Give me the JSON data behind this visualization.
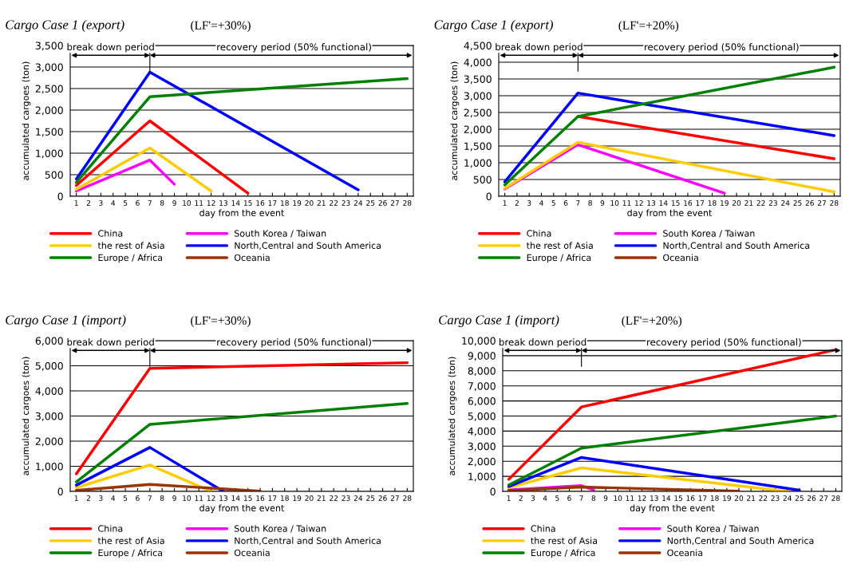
{
  "chart_data": [
    {
      "type": "line",
      "title": "Cargo Case 1 (export)",
      "subtitle": "(LF'=+30%)",
      "xlabel": "day from the event",
      "ylabel": "accumulated cargoes (ton)",
      "xlim": [
        0.5,
        28.5
      ],
      "xticks": [
        1,
        2,
        3,
        4,
        5,
        6,
        7,
        8,
        9,
        10,
        11,
        12,
        13,
        14,
        15,
        16,
        17,
        18,
        19,
        20,
        21,
        22,
        23,
        24,
        25,
        26,
        27,
        28
      ],
      "ylim": [
        0,
        3500
      ],
      "yticks": [
        0,
        {
          "value": 500,
          "label": "500"
        },
        {
          "value": 1000,
          "label": "1,000"
        },
        {
          "value": 1500,
          "label": "1,500"
        },
        {
          "value": 2000,
          "label": "2,000"
        },
        {
          "value": 2500,
          "label": "2,500"
        },
        {
          "value": 3000,
          "label": "3,000"
        },
        {
          "value": 3500,
          "label": "3,500"
        }
      ],
      "grid": "y",
      "legend": "bottom",
      "marker": "none",
      "line_style": "solid",
      "ref_lines": [
        {
          "axis": "x",
          "value": 7
        }
      ],
      "annotations": [
        "break down period",
        "recovery period (50% functional)"
      ],
      "series": [
        {
          "name": "China",
          "color": "#ff0000",
          "x": [
            1,
            7,
            15
          ],
          "values": [
            250,
            1750,
            70
          ]
        },
        {
          "name": "South Korea / Taiwan",
          "color": "#ff00ff",
          "x": [
            1,
            7,
            9
          ],
          "values": [
            120,
            840,
            280
          ]
        },
        {
          "name": "the rest of Asia",
          "color": "#ffcc00",
          "x": [
            1,
            7,
            12
          ],
          "values": [
            160,
            1120,
            120
          ]
        },
        {
          "name": "North,Central and South America",
          "color": "#0000ff",
          "x": [
            1,
            7,
            24
          ],
          "values": [
            400,
            2880,
            150
          ]
        },
        {
          "name": "Europe / Africa",
          "color": "#008000",
          "x": [
            1,
            7,
            28
          ],
          "values": [
            320,
            2310,
            2730
          ]
        },
        {
          "name": "Oceania",
          "color": "#993300"
        }
      ]
    },
    {
      "type": "line",
      "title": "Cargo Case 1 (export)",
      "subtitle": "(LF'=+20%)",
      "xlabel": "day from the event",
      "ylabel": "accumulated cargoes (ton)",
      "xlim": [
        0.5,
        28.5
      ],
      "xticks": [
        1,
        2,
        3,
        4,
        5,
        6,
        7,
        8,
        9,
        10,
        11,
        12,
        13,
        14,
        15,
        16,
        17,
        18,
        19,
        20,
        21,
        22,
        23,
        24,
        25,
        26,
        27,
        28
      ],
      "ylim": [
        0,
        4500
      ],
      "yticks": [
        0,
        {
          "value": 500,
          "label": "500"
        },
        {
          "value": 1000,
          "label": "1,000"
        },
        {
          "value": 1500,
          "label": "1,500"
        },
        {
          "value": 2000,
          "label": "2,000"
        },
        {
          "value": 2500,
          "label": "2,500"
        },
        {
          "value": 3000,
          "label": "3,000"
        },
        {
          "value": 3500,
          "label": "3,500"
        },
        {
          "value": 4000,
          "label": "4,000"
        },
        {
          "value": 4500,
          "label": "4,500"
        }
      ],
      "grid": "y",
      "legend": "bottom",
      "marker": "none",
      "line_style": "solid",
      "ref_lines": [
        {
          "axis": "x",
          "value": 7
        }
      ],
      "annotations": [
        "break down period",
        "recovery period (50% functional)"
      ],
      "series": [
        {
          "name": "China",
          "color": "#ff0000",
          "x": [
            7,
            28
          ],
          "values": [
            2380,
            1120
          ]
        },
        {
          "name": "South Korea / Taiwan",
          "color": "#ff00ff",
          "x": [
            1,
            7,
            19
          ],
          "values": [
            220,
            1540,
            90
          ]
        },
        {
          "name": "the rest of Asia",
          "color": "#ffcc00",
          "x": [
            1,
            7,
            28
          ],
          "values": [
            240,
            1610,
            130
          ]
        },
        {
          "name": "North,Central and South America",
          "color": "#0000ff",
          "x": [
            1,
            7,
            28
          ],
          "values": [
            430,
            3080,
            1810
          ]
        },
        {
          "name": "Europe / Africa",
          "color": "#008000",
          "x": [
            1,
            7,
            28
          ],
          "values": [
            340,
            2380,
            3850
          ]
        },
        {
          "name": "Oceania",
          "color": "#993300"
        }
      ]
    },
    {
      "type": "line",
      "title": "Cargo Case 1 (import)",
      "subtitle": "(LF'=+30%)",
      "xlabel": "day from the event",
      "ylabel": "accumulated cargoes (ton)",
      "xlim": [
        0.5,
        28.5
      ],
      "xticks": [
        1,
        2,
        3,
        4,
        5,
        6,
        7,
        8,
        9,
        10,
        11,
        12,
        13,
        14,
        15,
        16,
        17,
        18,
        19,
        20,
        21,
        22,
        23,
        24,
        25,
        26,
        27,
        28
      ],
      "ylim": [
        0,
        6000
      ],
      "yticks": [
        0,
        {
          "value": 1000,
          "label": "1,000"
        },
        {
          "value": 2000,
          "label": "2,000"
        },
        {
          "value": 3000,
          "label": "3,000"
        },
        {
          "value": 4000,
          "label": "4,000"
        },
        {
          "value": 5000,
          "label": "5,000"
        },
        {
          "value": 6000,
          "label": "6,000"
        }
      ],
      "grid": "y",
      "legend": "bottom",
      "marker": "none",
      "line_style": "solid",
      "ref_lines": [
        {
          "axis": "x",
          "value": 7
        }
      ],
      "annotations": [
        "break down period",
        "recovery period (50% functional)"
      ],
      "series": [
        {
          "name": "China",
          "color": "#ff0000",
          "x": [
            1,
            7,
            28
          ],
          "values": [
            700,
            4900,
            5120
          ]
        },
        {
          "name": "South Korea / Taiwan",
          "color": "#ff00ff"
        },
        {
          "name": "the rest of Asia",
          "color": "#ffcc00",
          "x": [
            1,
            7,
            12
          ],
          "values": [
            150,
            1050,
            0
          ]
        },
        {
          "name": "North,Central and South America",
          "color": "#0000ff",
          "x": [
            1,
            7,
            13
          ],
          "values": [
            250,
            1750,
            0
          ]
        },
        {
          "name": "Europe / Africa",
          "color": "#008000",
          "x": [
            1,
            7,
            28
          ],
          "values": [
            380,
            2670,
            3500
          ]
        },
        {
          "name": "Oceania",
          "color": "#993300",
          "x": [
            1,
            7,
            16
          ],
          "values": [
            40,
            280,
            10
          ]
        }
      ]
    },
    {
      "type": "line",
      "title": "Cargo Case 1 (import)",
      "subtitle": "(LF'=+20%)",
      "xlabel": "day from the event",
      "ylabel": "accumulated cargoes (ton)",
      "xlim": [
        0.5,
        28.5
      ],
      "xticks": [
        1,
        2,
        3,
        4,
        5,
        6,
        7,
        8,
        9,
        10,
        11,
        12,
        13,
        14,
        15,
        16,
        17,
        18,
        19,
        20,
        21,
        22,
        23,
        24,
        25,
        26,
        27,
        28
      ],
      "ylim": [
        0,
        10000
      ],
      "yticks": [
        0,
        {
          "value": 1000,
          "label": "1,000"
        },
        {
          "value": 2000,
          "label": "2,000"
        },
        {
          "value": 3000,
          "label": "3,000"
        },
        {
          "value": 4000,
          "label": "4,000"
        },
        {
          "value": 5000,
          "label": "5,000"
        },
        {
          "value": 6000,
          "label": "6,000"
        },
        {
          "value": 7000,
          "label": "7,000"
        },
        {
          "value": 8000,
          "label": "8,000"
        },
        {
          "value": 9000,
          "label": "9,000"
        },
        {
          "value": 10000,
          "label": "10,000"
        }
      ],
      "grid": "y",
      "legend": "bottom",
      "marker": "none",
      "line_style": "solid",
      "ref_lines": [
        {
          "axis": "x",
          "value": 7
        }
      ],
      "annotations": [
        "break down period",
        "recovery period (50% functional)"
      ],
      "series": [
        {
          "name": "China",
          "color": "#ff0000",
          "x": [
            1,
            7,
            28
          ],
          "values": [
            800,
            5600,
            9400
          ]
        },
        {
          "name": "South Korea / Taiwan",
          "color": "#ff00ff",
          "x": [
            1,
            7,
            8
          ],
          "values": [
            100,
            380,
            100
          ]
        },
        {
          "name": "the rest of Asia",
          "color": "#ffcc00",
          "x": [
            1,
            7,
            24
          ],
          "values": [
            250,
            1560,
            0
          ]
        },
        {
          "name": "North,Central and South America",
          "color": "#0000ff",
          "x": [
            1,
            7,
            25
          ],
          "values": [
            330,
            2250,
            80
          ]
        },
        {
          "name": "Europe / Africa",
          "color": "#008000",
          "x": [
            1,
            7,
            28
          ],
          "values": [
            420,
            2870,
            5000
          ]
        },
        {
          "name": "Oceania",
          "color": "#993300",
          "x": [
            1,
            7,
            20
          ],
          "values": [
            50,
            290,
            20
          ]
        }
      ]
    }
  ]
}
